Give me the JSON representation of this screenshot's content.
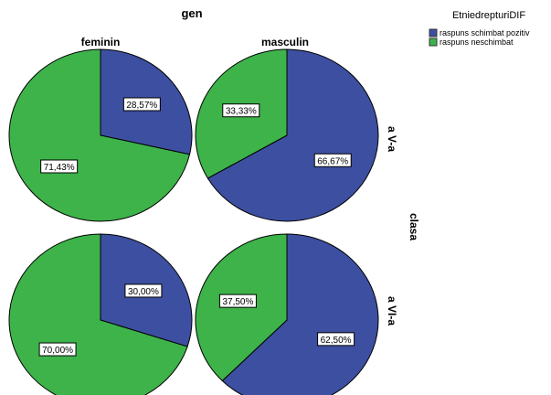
{
  "chart_data": {
    "type": "pie",
    "title": "gen",
    "column_var": "gen",
    "row_var": "clasa",
    "columns": [
      "feminin",
      "masculin"
    ],
    "rows": [
      "a V-a",
      "a VI-a"
    ],
    "legend": {
      "title": "EtniedrepturiDIF",
      "entries": [
        {
          "name": "raspuns schimbat pozitiv",
          "color": "#3d4fa0"
        },
        {
          "name": "raspuns neschimbat",
          "color": "#3db34a"
        }
      ],
      "placement": "top-right"
    },
    "panels": [
      {
        "row": "a V-a",
        "col": "feminin",
        "values": [
          28.57,
          71.43
        ],
        "labels": [
          "28,57%",
          "71,43%"
        ]
      },
      {
        "row": "a V-a",
        "col": "masculin",
        "values": [
          66.67,
          33.33
        ],
        "labels": [
          "66,67%",
          "33,33%"
        ]
      },
      {
        "row": "a VI-a",
        "col": "feminin",
        "values": [
          30.0,
          70.0
        ],
        "labels": [
          "30,00%",
          "70,00%"
        ]
      },
      {
        "row": "a VI-a",
        "col": "masculin",
        "values": [
          62.5,
          37.5
        ],
        "labels": [
          "62,50%",
          "37,50%"
        ]
      }
    ]
  }
}
